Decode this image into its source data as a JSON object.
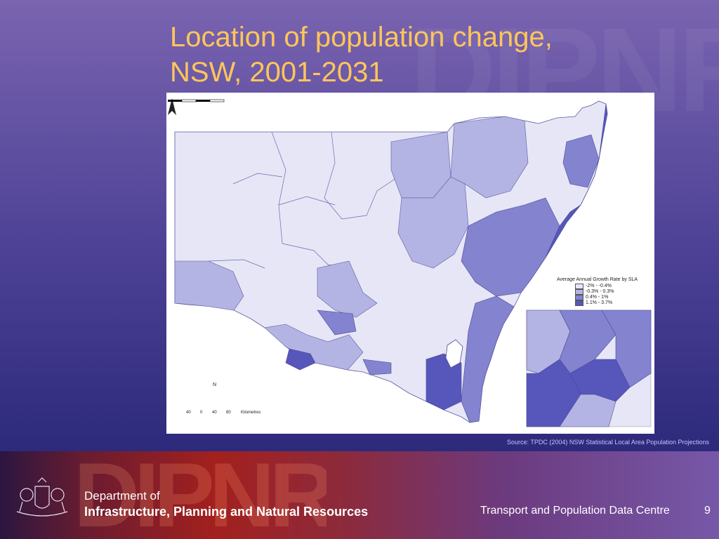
{
  "slide": {
    "title_line1": "Location of population change,",
    "title_line2": "NSW, 2001-2031",
    "title_color": "#ffc65a",
    "background_color": "#4e4296"
  },
  "map": {
    "legend": {
      "title": "Average Annual Growth Rate by SLA",
      "classes": [
        {
          "label": "-2% - -0.4%",
          "color": "#e6e6f6"
        },
        {
          "label": "-0.3% - 0.3%",
          "color": "#b4b4e4"
        },
        {
          "label": "0.4% - 1%",
          "color": "#8383d0"
        },
        {
          "label": "1.1% - 3.7%",
          "color": "#5656bb"
        }
      ]
    },
    "north_label": "N",
    "scale_ticks": [
      "40",
      "0",
      "40",
      "80"
    ],
    "scale_unit": "Kilometres"
  },
  "source": "Source: TPDC (2004) NSW Statistical Local Area Population Projections",
  "footer": {
    "dept_line1": "Department of",
    "dept_line2": "Infrastructure, Planning and Natural Resources",
    "centre": "Transport and Population Data Centre",
    "page_number": "9"
  }
}
